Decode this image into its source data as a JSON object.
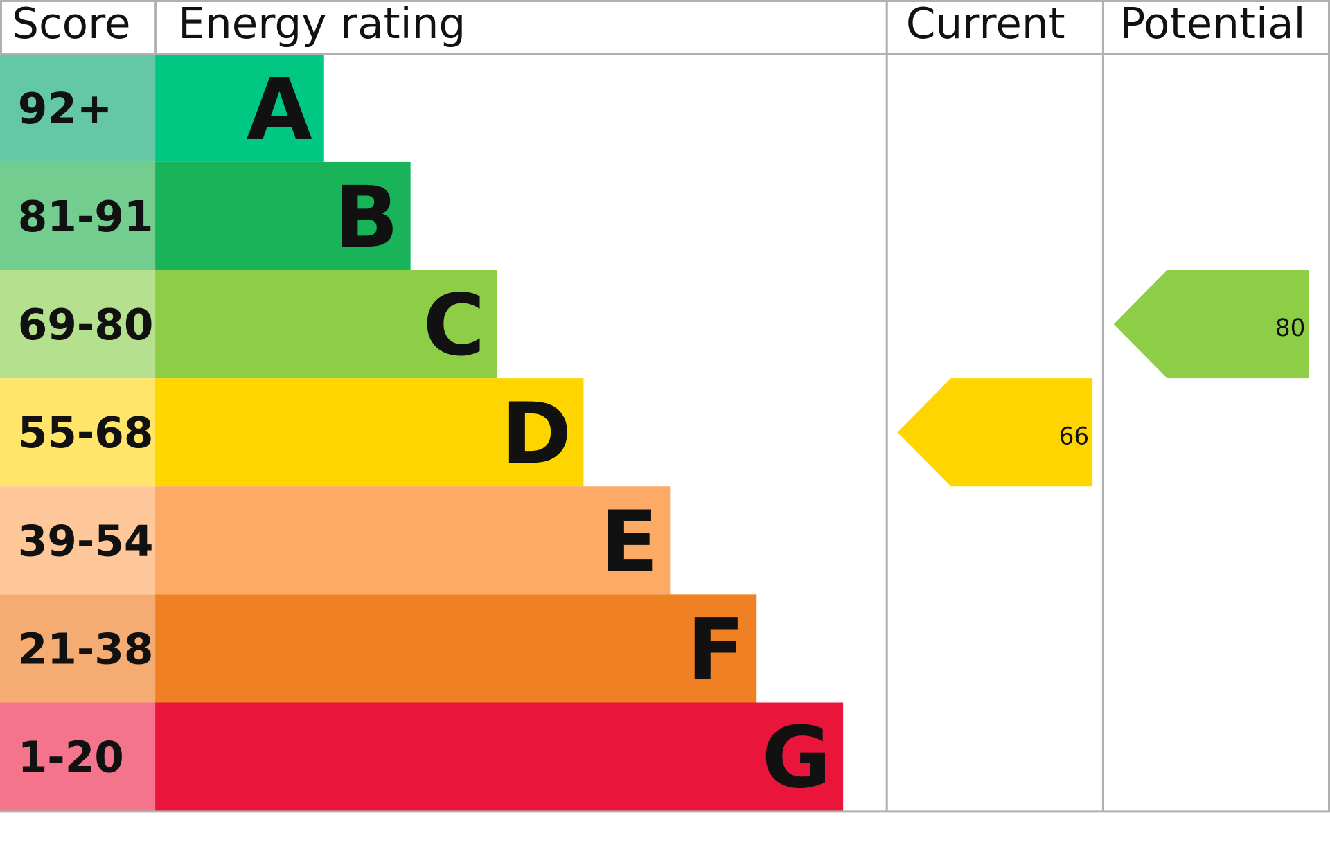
{
  "chart_data": {
    "type": "bar",
    "headers": {
      "score": "Score",
      "rating": "Energy rating",
      "current": "Current",
      "potential": "Potential"
    },
    "bands": [
      {
        "letter": "A",
        "range": "92+",
        "color": "#00c781",
        "score_color": "#64c7a5"
      },
      {
        "letter": "B",
        "range": "81-91",
        "color": "#19b459",
        "score_color": "#72cd8e"
      },
      {
        "letter": "C",
        "range": "69-80",
        "color": "#8dce46",
        "score_color": "#b5e08d"
      },
      {
        "letter": "D",
        "range": "55-68",
        "color": "#ffd500",
        "score_color": "#ffe66a"
      },
      {
        "letter": "E",
        "range": "39-54",
        "color": "#fcaa65",
        "score_color": "#fec89b"
      },
      {
        "letter": "F",
        "range": "21-38",
        "color": "#ef8023",
        "score_color": "#f5ac73"
      },
      {
        "letter": "G",
        "range": "1-20",
        "color": "#e9153b",
        "score_color": "#f3748b"
      }
    ],
    "current": {
      "value": "66",
      "band": "D",
      "color": "#ffd500"
    },
    "potential": {
      "value": "80",
      "band": "C",
      "color": "#8dce46"
    },
    "grid_color": "#b0b0b0"
  }
}
